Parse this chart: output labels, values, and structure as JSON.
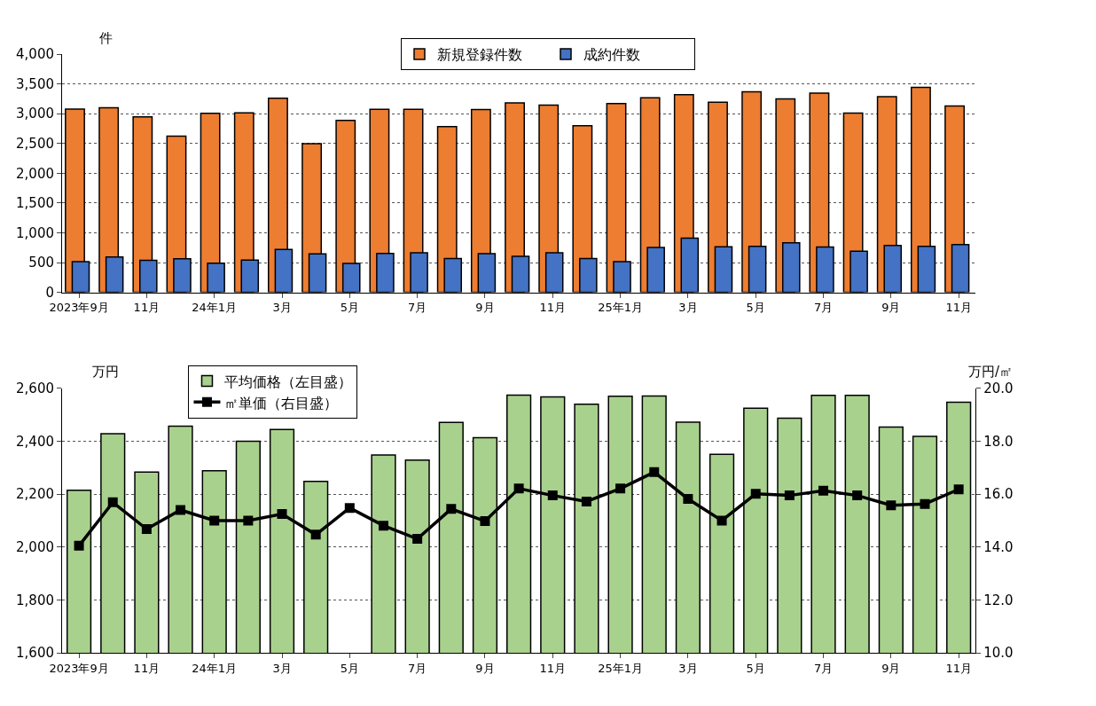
{
  "chart_data": [
    {
      "type": "bar",
      "ylabel": "件",
      "categories": [
        "2023年9月",
        null,
        "11月",
        null,
        "24年1月",
        null,
        "3月",
        null,
        "5月",
        null,
        "7月",
        null,
        "9月",
        null,
        "11月",
        null,
        "25年1月",
        null,
        "3月",
        null,
        "5月",
        null,
        "7月",
        null,
        "9月",
        null,
        "11月"
      ],
      "series": [
        {
          "name": "新規登録件数",
          "color": "#ed7d31",
          "values": [
            3077,
            3098,
            2948,
            2624,
            3005,
            3015,
            3258,
            2495,
            2887,
            3072,
            3072,
            2784,
            3069,
            3181,
            3144,
            2798,
            3170,
            3266,
            3319,
            3191,
            3367,
            3250,
            3346,
            3011,
            3287,
            3441,
            3128
          ]
        },
        {
          "name": "成約件数",
          "color": "#4472c4",
          "values": [
            516,
            595,
            537,
            563,
            489,
            542,
            721,
            647,
            484,
            653,
            663,
            568,
            649,
            606,
            665,
            569,
            516,
            755,
            910,
            766,
            771,
            830,
            761,
            691,
            787,
            771,
            803
          ]
        }
      ],
      "ylim": [
        0,
        4000
      ],
      "yticks": [
        {
          "value": 0,
          "label": "0"
        },
        {
          "value": 500,
          "label": "500"
        },
        {
          "value": 1000,
          "label": "1,000"
        },
        {
          "value": 1500,
          "label": "1,500"
        },
        {
          "value": 2000,
          "label": "2,000"
        },
        {
          "value": 2500,
          "label": "2,500"
        },
        {
          "value": 3000,
          "label": "3,000"
        },
        {
          "value": 3500,
          "label": "3,500"
        },
        {
          "value": 4000,
          "label": "4,000"
        }
      ],
      "grid": "y",
      "legend": "top"
    },
    {
      "type": "bar",
      "ylabel": "万円",
      "y2label": "万円/㎡",
      "categories": [
        "2023年9月",
        null,
        "11月",
        null,
        "24年1月",
        null,
        "3月",
        null,
        "5月",
        null,
        "7月",
        null,
        "9月",
        null,
        "11月",
        null,
        "25年1月",
        null,
        "3月",
        null,
        "5月",
        null,
        "7月",
        null,
        "9月",
        null,
        "11月"
      ],
      "series": [
        {
          "name": "平均価格（左目盛）",
          "color": "#a9d18e",
          "values": [
            2215,
            2428,
            2283,
            2457,
            2288,
            2400,
            2444,
            2248,
            null,
            2348,
            2329,
            2471,
            2413,
            2574,
            2567,
            2540,
            2570,
            2571,
            2472,
            2350,
            2525,
            2487,
            2573,
            2573,
            2453,
            2418,
            2547
          ]
        },
        {
          "name": "㎡単価（右目盛）",
          "type": "line",
          "axis": "y2",
          "color": "#000000",
          "marker": "square",
          "line_style": "solid",
          "values": [
            14.05,
            15.69,
            14.68,
            15.4,
            15.0,
            15.0,
            15.25,
            14.47,
            15.48,
            14.81,
            14.31,
            15.44,
            14.98,
            16.21,
            15.95,
            15.72,
            16.21,
            16.83,
            15.82,
            15.0,
            16.01,
            15.95,
            16.13,
            15.95,
            15.58,
            15.63,
            16.18
          ]
        }
      ],
      "ylim": [
        1600,
        2600
      ],
      "yticks": [
        {
          "value": 1600,
          "label": "1,600"
        },
        {
          "value": 1800,
          "label": "1,800"
        },
        {
          "value": 2000,
          "label": "2,000"
        },
        {
          "value": 2200,
          "label": "2,200"
        },
        {
          "value": 2400,
          "label": "2,400"
        },
        {
          "value": 2600,
          "label": "2,600"
        }
      ],
      "y2lim": [
        10,
        20
      ],
      "y2ticks": [
        {
          "value": 10,
          "label": "10.0"
        },
        {
          "value": 12,
          "label": "12.0"
        },
        {
          "value": 14,
          "label": "14.0"
        },
        {
          "value": 16,
          "label": "16.0"
        },
        {
          "value": 18,
          "label": "18.0"
        },
        {
          "value": 20,
          "label": "20.0"
        }
      ],
      "grid": "y",
      "legend": "top left"
    }
  ]
}
